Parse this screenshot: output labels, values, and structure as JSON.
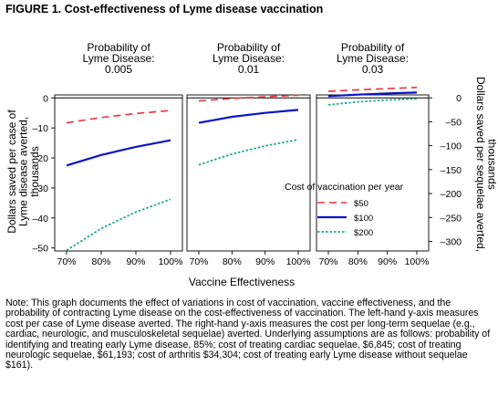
{
  "figure_title": "FIGURE 1. Cost-effectiveness of Lyme disease vaccination",
  "note": "Note: This graph documents the effect of variations in cost of vaccination, vaccine effectiveness, and the probability of contracting Lyme disease on the cost-effectiveness of vaccination. The left-hand y-axis measures cost per case of Lyme disease averted. The right-hand y-axis measures the cost per long-term sequelae (e.g., cardiac, neurologic, and musculoskeletal sequelae) averted. Underlying assumptions are as follows: probability of identifying and treating early Lyme disease, 85%; cost of treating cardiac sequelae, $6,845; cost of treating neurologic sequelae, $61,193; cost of arthritis $34,304; cost of treating early Lyme disease without sequelae $161).",
  "colors": {
    "series_50": "#e8323c",
    "series_100": "#0a14c8",
    "series_200": "#1fa98c"
  },
  "chart_data": {
    "type": "line",
    "xlabel": "Vaccine Effectiveness",
    "ylabel_left": "Dollars saved per case of Lyme disease averted, thousands",
    "ylabel_right": "Dollars saved per sequelae averted, thousands",
    "x": [
      "70%",
      "80%",
      "90%",
      "100%"
    ],
    "x_values": [
      70,
      80,
      90,
      100
    ],
    "ylim_left": [
      -51,
      1
    ],
    "yticks_left": [
      0,
      -10,
      -20,
      -30,
      -40,
      -50
    ],
    "ylim_right": [
      -320,
      6
    ],
    "yticks_right": [
      0,
      -50,
      -100,
      -150,
      -200,
      -250,
      -300
    ],
    "legend_title": "Cost of vaccination per year",
    "legend_position": "right of third panel",
    "series_styles": [
      "dashed",
      "solid",
      "dotted"
    ],
    "panels": [
      {
        "title": "Probability of Lyme Disease: 0.005",
        "title_lines": [
          "Probability of",
          "Lyme Disease:",
          "0.005"
        ],
        "series": [
          {
            "name": "$50",
            "values": [
              -8.3,
              -6.5,
              -5.2,
              -4.2
            ]
          },
          {
            "name": "$100",
            "values": [
              -22.5,
              -19.0,
              -16.3,
              -14.1
            ]
          },
          {
            "name": "$200",
            "values": [
              -50.8,
              -43.5,
              -38.0,
              -33.8
            ]
          }
        ]
      },
      {
        "title": "Probability of Lyme Disease: 0.01",
        "title_lines": [
          "Probability of",
          "Lyme Disease:",
          "0.01"
        ],
        "series": [
          {
            "name": "$50",
            "values": [
              -1.0,
              -0.2,
              0.4,
              0.9
            ]
          },
          {
            "name": "$100",
            "values": [
              -8.3,
              -6.3,
              -5.0,
              -4.0
            ]
          },
          {
            "name": "$200",
            "values": [
              -22.3,
              -18.7,
              -16.0,
              -13.9
            ]
          }
        ]
      },
      {
        "title": "Probability of Lyme Disease: 0.03",
        "title_lines": [
          "Probability of",
          "Lyme Disease:",
          "0.03"
        ],
        "series": [
          {
            "name": "$50",
            "values": [
              2.2,
              2.7,
              3.1,
              3.5
            ]
          },
          {
            "name": "$100",
            "values": [
              0.6,
              1.1,
              1.5,
              1.8
            ]
          },
          {
            "name": "$200",
            "values": [
              -2.3,
              -1.3,
              -0.7,
              -0.3
            ]
          }
        ]
      }
    ]
  }
}
